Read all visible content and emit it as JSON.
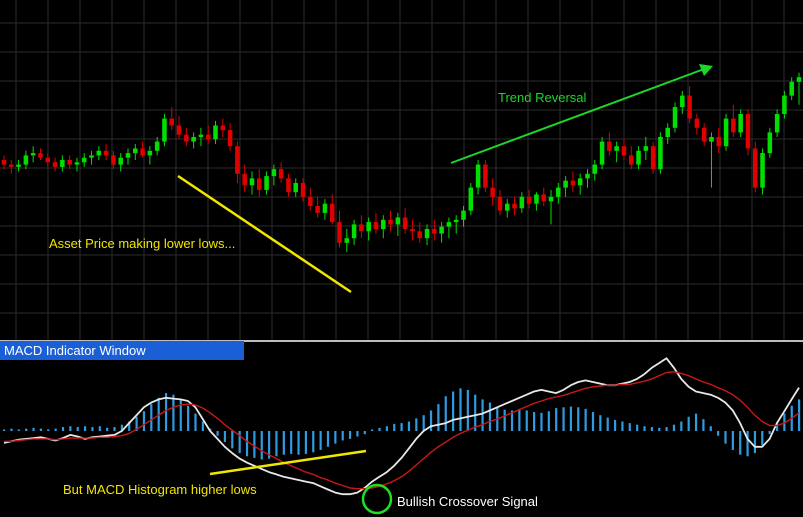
{
  "panel_label": "MACD Indicator Window",
  "annotations": {
    "lower_lows": "Asset Price making lower lows...",
    "trend_reversal": "Trend Reversal",
    "higher_lows": "But MACD Histogram higher lows",
    "crossover": "Bullish Crossover Signal"
  },
  "colors": {
    "background": "#000000",
    "grid": "#2c2c2c",
    "bull_candle": "#00e000",
    "bear_candle": "#e00000",
    "histogram": "#2f9be0",
    "macd_line": "#e8e8e8",
    "signal_line": "#c81818",
    "yellow_annotation": "#f2e600",
    "green_annotation": "#1cd62a",
    "crossover_circle": "#1ee01e",
    "panel_label_bg": "#1a5fd6"
  },
  "chart_data": [
    {
      "type": "candlestick",
      "title": "",
      "ylim": [
        0,
        100
      ],
      "candles": [
        [
          50,
          52,
          46,
          48
        ],
        [
          48,
          50,
          44,
          47
        ],
        [
          47,
          50,
          45,
          48
        ],
        [
          48,
          54,
          46,
          52
        ],
        [
          52,
          56,
          49,
          53
        ],
        [
          53,
          55,
          50,
          51
        ],
        [
          51,
          53,
          47,
          49
        ],
        [
          49,
          51,
          45,
          47
        ],
        [
          47,
          52,
          45,
          50
        ],
        [
          50,
          52,
          46,
          48
        ],
        [
          48,
          51,
          45,
          49
        ],
        [
          49,
          53,
          47,
          51
        ],
        [
          51,
          54,
          48,
          52
        ],
        [
          52,
          56,
          50,
          54
        ],
        [
          54,
          57,
          50,
          52
        ],
        [
          52,
          54,
          46,
          48
        ],
        [
          48,
          53,
          45,
          51
        ],
        [
          51,
          55,
          48,
          53
        ],
        [
          53,
          57,
          50,
          55
        ],
        [
          55,
          58,
          51,
          52
        ],
        [
          52,
          56,
          48,
          54
        ],
        [
          54,
          60,
          52,
          58
        ],
        [
          58,
          70,
          56,
          68
        ],
        [
          68,
          73,
          63,
          65
        ],
        [
          65,
          69,
          59,
          61
        ],
        [
          61,
          64,
          56,
          58
        ],
        [
          58,
          62,
          55,
          60
        ],
        [
          60,
          64,
          56,
          61
        ],
        [
          61,
          65,
          57,
          59
        ],
        [
          59,
          67,
          57,
          65
        ],
        [
          65,
          68,
          60,
          63
        ],
        [
          63,
          66,
          54,
          56
        ],
        [
          56,
          58,
          40,
          44
        ],
        [
          44,
          48,
          36,
          39
        ],
        [
          39,
          45,
          35,
          42
        ],
        [
          42,
          46,
          34,
          37
        ],
        [
          37,
          45,
          35,
          43
        ],
        [
          43,
          48,
          39,
          46
        ],
        [
          46,
          49,
          40,
          42
        ],
        [
          42,
          44,
          34,
          36
        ],
        [
          36,
          42,
          34,
          40
        ],
        [
          40,
          42,
          32,
          34
        ],
        [
          34,
          38,
          28,
          30
        ],
        [
          30,
          34,
          25,
          27
        ],
        [
          27,
          33,
          24,
          31
        ],
        [
          31,
          35,
          22,
          23
        ],
        [
          23,
          28,
          12,
          14
        ],
        [
          14,
          20,
          10,
          16
        ],
        [
          16,
          24,
          13,
          22
        ],
        [
          22,
          26,
          16,
          19
        ],
        [
          19,
          25,
          15,
          23
        ],
        [
          23,
          27,
          18,
          20
        ],
        [
          20,
          26,
          16,
          24
        ],
        [
          24,
          28,
          19,
          22
        ],
        [
          22,
          27,
          17,
          25
        ],
        [
          25,
          29,
          18,
          20
        ],
        [
          20,
          24,
          15,
          19
        ],
        [
          19,
          23,
          14,
          16
        ],
        [
          16,
          22,
          13,
          20
        ],
        [
          20,
          24,
          15,
          18
        ],
        [
          18,
          23,
          14,
          21
        ],
        [
          21,
          25,
          16,
          23
        ],
        [
          23,
          26,
          18,
          24
        ],
        [
          24,
          30,
          21,
          28
        ],
        [
          28,
          40,
          26,
          38
        ],
        [
          38,
          50,
          35,
          48
        ],
        [
          48,
          50,
          36,
          38
        ],
        [
          38,
          42,
          30,
          34
        ],
        [
          34,
          37,
          26,
          28
        ],
        [
          28,
          33,
          25,
          31
        ],
        [
          31,
          34,
          26,
          29
        ],
        [
          29,
          36,
          27,
          34
        ],
        [
          34,
          37,
          29,
          31
        ],
        [
          31,
          36,
          28,
          35
        ],
        [
          35,
          38,
          30,
          32
        ],
        [
          32,
          37,
          22,
          34
        ],
        [
          34,
          40,
          31,
          38
        ],
        [
          38,
          43,
          34,
          41
        ],
        [
          41,
          45,
          36,
          39
        ],
        [
          39,
          44,
          35,
          42
        ],
        [
          42,
          46,
          38,
          44
        ],
        [
          44,
          50,
          41,
          48
        ],
        [
          48,
          60,
          46,
          58
        ],
        [
          58,
          62,
          52,
          54
        ],
        [
          54,
          58,
          49,
          56
        ],
        [
          56,
          59,
          50,
          52
        ],
        [
          52,
          56,
          46,
          48
        ],
        [
          48,
          56,
          46,
          54
        ],
        [
          54,
          60,
          50,
          56
        ],
        [
          56,
          58,
          44,
          46
        ],
        [
          46,
          62,
          44,
          60
        ],
        [
          60,
          66,
          57,
          64
        ],
        [
          64,
          75,
          62,
          73
        ],
        [
          73,
          80,
          70,
          78
        ],
        [
          78,
          82,
          66,
          68
        ],
        [
          68,
          70,
          61,
          64
        ],
        [
          64,
          66,
          56,
          58
        ],
        [
          58,
          62,
          38,
          60
        ],
        [
          60,
          64,
          53,
          56
        ],
        [
          56,
          70,
          54,
          68
        ],
        [
          68,
          74,
          60,
          62
        ],
        [
          62,
          72,
          60,
          70
        ],
        [
          70,
          72,
          52,
          55
        ],
        [
          55,
          58,
          36,
          38
        ],
        [
          38,
          55,
          35,
          53
        ],
        [
          53,
          64,
          51,
          62
        ],
        [
          62,
          72,
          60,
          70
        ],
        [
          70,
          80,
          68,
          78
        ],
        [
          78,
          86,
          76,
          84
        ],
        [
          84,
          88,
          74,
          86
        ]
      ]
    },
    {
      "type": "bar+line",
      "title": "",
      "ylim": [
        -1,
        1
      ],
      "histogram": [
        0.02,
        0.03,
        0.02,
        0.03,
        0.04,
        0.03,
        0.02,
        0.03,
        0.05,
        0.06,
        0.05,
        0.06,
        0.05,
        0.06,
        0.04,
        0.05,
        0.08,
        0.12,
        0.18,
        0.25,
        0.34,
        0.42,
        0.48,
        0.46,
        0.4,
        0.32,
        0.22,
        0.12,
        0.03,
        -0.06,
        -0.14,
        -0.22,
        -0.28,
        -0.32,
        -0.34,
        -0.36,
        -0.35,
        -0.32,
        -0.3,
        -0.29,
        -0.3,
        -0.29,
        -0.27,
        -0.24,
        -0.2,
        -0.16,
        -0.12,
        -0.1,
        -0.07,
        -0.04,
        0.02,
        0.04,
        0.06,
        0.09,
        0.1,
        0.12,
        0.16,
        0.2,
        0.26,
        0.34,
        0.44,
        0.5,
        0.54,
        0.52,
        0.46,
        0.4,
        0.36,
        0.3,
        0.27,
        0.26,
        0.28,
        0.26,
        0.24,
        0.23,
        0.25,
        0.29,
        0.3,
        0.31,
        0.3,
        0.28,
        0.24,
        0.2,
        0.17,
        0.14,
        0.12,
        0.1,
        0.08,
        0.06,
        0.05,
        0.04,
        0.05,
        0.08,
        0.12,
        0.18,
        0.22,
        0.15,
        0.06,
        -0.06,
        -0.16,
        -0.24,
        -0.3,
        -0.32,
        -0.28,
        -0.18,
        -0.04,
        0.1,
        0.22,
        0.32,
        0.4
      ],
      "series": [
        {
          "role": "macd",
          "values": [
            -0.15,
            -0.13,
            -0.11,
            -0.1,
            -0.09,
            -0.08,
            -0.1,
            -0.12,
            -0.09,
            -0.05,
            -0.07,
            -0.1,
            -0.08,
            -0.07,
            -0.06,
            -0.05,
            0.0,
            0.1,
            0.2,
            0.3,
            0.36,
            0.4,
            0.42,
            0.41,
            0.4,
            0.38,
            0.3,
            0.15,
            0.0,
            -0.1,
            -0.2,
            -0.28,
            -0.35,
            -0.4,
            -0.44,
            -0.48,
            -0.52,
            -0.55,
            -0.58,
            -0.6,
            -0.62,
            -0.64,
            -0.66,
            -0.7,
            -0.74,
            -0.78,
            -0.8,
            -0.8,
            -0.78,
            -0.72,
            -0.64,
            -0.58,
            -0.52,
            -0.44,
            -0.34,
            -0.22,
            -0.1,
            0.0,
            0.06,
            0.08,
            0.1,
            0.14,
            0.16,
            0.18,
            0.2,
            0.22,
            0.26,
            0.3,
            0.34,
            0.38,
            0.42,
            0.46,
            0.5,
            0.52,
            0.5,
            0.48,
            0.52,
            0.58,
            0.62,
            0.64,
            0.62,
            0.6,
            0.58,
            0.58,
            0.6,
            0.62,
            0.66,
            0.72,
            0.8,
            0.86,
            0.92,
            0.8,
            0.66,
            0.56,
            0.5,
            0.48,
            0.46,
            0.42,
            0.36,
            0.26,
            0.1,
            -0.1,
            -0.2,
            -0.2,
            -0.1,
            0.1,
            0.25,
            0.4,
            0.55
          ]
        },
        {
          "role": "signal",
          "values": [
            -0.13,
            -0.13,
            -0.12,
            -0.11,
            -0.1,
            -0.1,
            -0.1,
            -0.11,
            -0.1,
            -0.09,
            -0.09,
            -0.09,
            -0.09,
            -0.08,
            -0.08,
            -0.07,
            -0.06,
            -0.03,
            0.02,
            0.08,
            0.14,
            0.2,
            0.26,
            0.3,
            0.33,
            0.34,
            0.33,
            0.29,
            0.23,
            0.16,
            0.08,
            0.01,
            -0.06,
            -0.13,
            -0.19,
            -0.25,
            -0.3,
            -0.35,
            -0.4,
            -0.44,
            -0.48,
            -0.52,
            -0.55,
            -0.59,
            -0.62,
            -0.66,
            -0.69,
            -0.72,
            -0.73,
            -0.73,
            -0.72,
            -0.7,
            -0.67,
            -0.63,
            -0.58,
            -0.51,
            -0.43,
            -0.35,
            -0.27,
            -0.2,
            -0.14,
            -0.08,
            -0.03,
            0.01,
            0.05,
            0.08,
            0.12,
            0.15,
            0.19,
            0.23,
            0.27,
            0.31,
            0.35,
            0.38,
            0.41,
            0.43,
            0.45,
            0.48,
            0.51,
            0.54,
            0.56,
            0.57,
            0.58,
            0.58,
            0.59,
            0.59,
            0.61,
            0.63,
            0.66,
            0.7,
            0.74,
            0.75,
            0.73,
            0.7,
            0.66,
            0.62,
            0.59,
            0.55,
            0.51,
            0.46,
            0.39,
            0.3,
            0.2,
            0.12,
            0.07,
            0.07,
            0.1,
            0.16,
            0.23
          ]
        }
      ]
    }
  ]
}
